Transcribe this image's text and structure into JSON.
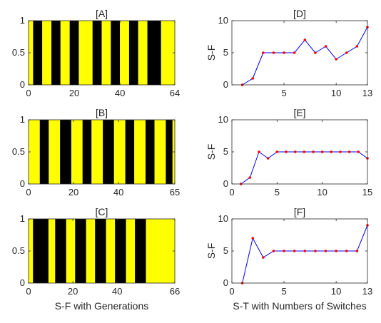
{
  "chart_data": [
    {
      "type": "bar",
      "title": "[A]",
      "xlim": [
        0,
        64
      ],
      "ylim": [
        0,
        1
      ],
      "xticks": [
        "0",
        "20",
        "40",
        "64"
      ],
      "xtick_values": [
        0,
        20,
        40,
        64
      ],
      "yticks": [
        "0",
        "0.5",
        "1"
      ],
      "ytick_values": [
        0,
        0.5,
        1
      ],
      "colors": {
        "1": "#ffff00",
        "0": "#000000"
      },
      "segments": [
        {
          "start": 0,
          "end": 2,
          "value": 1
        },
        {
          "start": 2,
          "end": 6,
          "value": 0
        },
        {
          "start": 6,
          "end": 10,
          "value": 1
        },
        {
          "start": 10,
          "end": 14,
          "value": 0
        },
        {
          "start": 14,
          "end": 18,
          "value": 1
        },
        {
          "start": 18,
          "end": 22,
          "value": 0
        },
        {
          "start": 22,
          "end": 28,
          "value": 1
        },
        {
          "start": 28,
          "end": 32,
          "value": 0
        },
        {
          "start": 32,
          "end": 36,
          "value": 1
        },
        {
          "start": 36,
          "end": 40,
          "value": 0
        },
        {
          "start": 40,
          "end": 44,
          "value": 1
        },
        {
          "start": 44,
          "end": 48,
          "value": 0
        },
        {
          "start": 48,
          "end": 52,
          "value": 1
        },
        {
          "start": 52,
          "end": 58,
          "value": 0
        },
        {
          "start": 58,
          "end": 64,
          "value": 1
        }
      ]
    },
    {
      "type": "bar",
      "title": "[B]",
      "xlim": [
        0,
        65
      ],
      "ylim": [
        0,
        1
      ],
      "xticks": [
        "0",
        "20",
        "40",
        "65"
      ],
      "xtick_values": [
        0,
        20,
        40,
        65
      ],
      "yticks": [
        "0",
        "0.5",
        "1"
      ],
      "ytick_values": [
        0,
        0.5,
        1
      ],
      "colors": {
        "1": "#ffff00",
        "0": "#000000"
      },
      "segments": [
        {
          "start": 0,
          "end": 5,
          "value": 1
        },
        {
          "start": 5,
          "end": 9,
          "value": 0
        },
        {
          "start": 9,
          "end": 14,
          "value": 1
        },
        {
          "start": 14,
          "end": 19,
          "value": 0
        },
        {
          "start": 19,
          "end": 24,
          "value": 1
        },
        {
          "start": 24,
          "end": 28,
          "value": 0
        },
        {
          "start": 28,
          "end": 33,
          "value": 1
        },
        {
          "start": 33,
          "end": 38,
          "value": 0
        },
        {
          "start": 38,
          "end": 43,
          "value": 1
        },
        {
          "start": 43,
          "end": 47,
          "value": 0
        },
        {
          "start": 47,
          "end": 52,
          "value": 1
        },
        {
          "start": 52,
          "end": 56,
          "value": 0
        },
        {
          "start": 56,
          "end": 61,
          "value": 1
        },
        {
          "start": 61,
          "end": 64,
          "value": 0
        },
        {
          "start": 64,
          "end": 65,
          "value": 1
        }
      ]
    },
    {
      "type": "bar",
      "title": "[C]",
      "xlim": [
        0,
        66
      ],
      "ylim": [
        0,
        1
      ],
      "xticks": [
        "0",
        "20",
        "40",
        "66"
      ],
      "xtick_values": [
        0,
        20,
        40,
        66
      ],
      "yticks": [
        "0",
        "0.5",
        "1"
      ],
      "ytick_values": [
        0,
        0.5,
        1
      ],
      "xlabel": "S-F with Generations",
      "colors": {
        "1": "#ffff00",
        "0": "#000000"
      },
      "segments": [
        {
          "start": 0,
          "end": 2,
          "value": 1
        },
        {
          "start": 2,
          "end": 9,
          "value": 0
        },
        {
          "start": 9,
          "end": 12,
          "value": 1
        },
        {
          "start": 12,
          "end": 17,
          "value": 0
        },
        {
          "start": 17,
          "end": 21,
          "value": 1
        },
        {
          "start": 21,
          "end": 26,
          "value": 0
        },
        {
          "start": 26,
          "end": 30,
          "value": 1
        },
        {
          "start": 30,
          "end": 35,
          "value": 0
        },
        {
          "start": 35,
          "end": 39,
          "value": 1
        },
        {
          "start": 39,
          "end": 44,
          "value": 0
        },
        {
          "start": 44,
          "end": 48,
          "value": 1
        },
        {
          "start": 48,
          "end": 53,
          "value": 0
        },
        {
          "start": 53,
          "end": 66,
          "value": 1
        }
      ]
    },
    {
      "type": "line",
      "title": "[D]",
      "ylabel": "S-F",
      "xlim": [
        0,
        13
      ],
      "ylim": [
        0,
        10
      ],
      "xticks": [
        "5",
        "10",
        "13"
      ],
      "xtick_values": [
        5,
        10,
        13
      ],
      "yticks": [
        "0",
        "5",
        "10"
      ],
      "ytick_values": [
        0,
        5,
        10
      ],
      "line_color": "#0000ff",
      "marker_color": "#ff0000",
      "x": [
        1,
        2,
        3,
        4,
        5,
        6,
        7,
        8,
        9,
        10,
        11,
        12,
        13
      ],
      "values": [
        0,
        1,
        5,
        5,
        5,
        5,
        7,
        5,
        6,
        4,
        5,
        6,
        9
      ]
    },
    {
      "type": "line",
      "title": "[E]",
      "ylabel": "S-F",
      "xlim": [
        0,
        15
      ],
      "ylim": [
        0,
        10
      ],
      "xticks": [
        "0",
        "5",
        "10",
        "15"
      ],
      "xtick_values": [
        0,
        5,
        10,
        15
      ],
      "yticks": [
        "0",
        "5",
        "10"
      ],
      "ytick_values": [
        0,
        5,
        10
      ],
      "line_color": "#0000ff",
      "marker_color": "#ff0000",
      "x": [
        1,
        2,
        3,
        4,
        5,
        6,
        7,
        8,
        9,
        10,
        11,
        12,
        13,
        14,
        15
      ],
      "values": [
        0,
        1,
        5,
        4,
        5,
        5,
        5,
        5,
        5,
        5,
        5,
        5,
        5,
        5,
        4
      ]
    },
    {
      "type": "line",
      "title": "[F]",
      "ylabel": "S-F",
      "xlabel": "S-T with Numbers of Switches",
      "xlim": [
        0,
        13
      ],
      "ylim": [
        0,
        10
      ],
      "xticks": [
        "0",
        "5",
        "10",
        "13"
      ],
      "xtick_values": [
        0,
        5,
        10,
        13
      ],
      "yticks": [
        "0",
        "5",
        "10"
      ],
      "ytick_values": [
        0,
        5,
        10
      ],
      "line_color": "#0000ff",
      "marker_color": "#ff0000",
      "x": [
        1,
        2,
        3,
        4,
        5,
        6,
        7,
        8,
        9,
        10,
        11,
        12,
        13
      ],
      "values": [
        0,
        7,
        4,
        5,
        5,
        5,
        5,
        5,
        5,
        5,
        5,
        5,
        9
      ]
    }
  ]
}
